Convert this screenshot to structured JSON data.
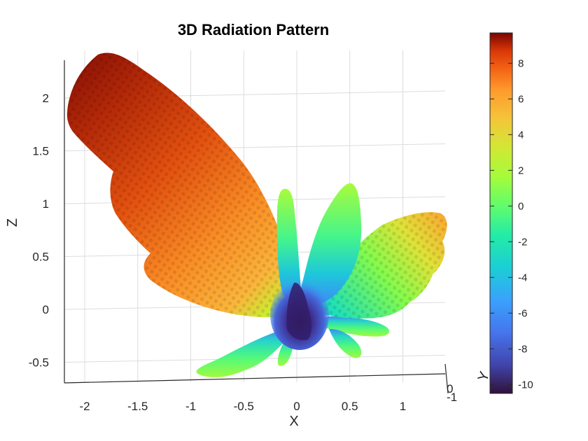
{
  "chart_data": {
    "type": "scatter3d",
    "title": "3D Radiation Pattern",
    "xlabel": "X",
    "ylabel": "Y",
    "zlabel": "Z",
    "x_ticks": [
      -2,
      -1.5,
      -1,
      -0.5,
      0,
      0.5,
      1
    ],
    "z_ticks": [
      -0.5,
      0,
      0.5,
      1,
      1.5,
      2
    ],
    "y_ticks_visible": [
      0,
      -1
    ],
    "xlim": [
      -2.2,
      1.4
    ],
    "zlim": [
      -0.68,
      2.4
    ],
    "grid": true,
    "colormap": "turbo",
    "colorbar": {
      "ticks": [
        8,
        6,
        4,
        2,
        0,
        -2,
        -4,
        -6,
        -8,
        -10
      ],
      "range": [
        -10.5,
        9.7
      ],
      "location": "right"
    },
    "colors": {
      "low": "#30123b",
      "mid_low": "#4686fb",
      "mid": "#1be5b5",
      "mid_high": "#a4fc3c",
      "high": "#fb8022",
      "max": "#7a0403"
    },
    "lobes": [
      {
        "name": "main lobe",
        "x": -2.1,
        "z": 2.2,
        "gain": 9.5
      },
      {
        "name": "right lobe",
        "x": 1.35,
        "z": 0.85,
        "gain": 4.0
      },
      {
        "name": "upper center lobe",
        "x": 0.5,
        "z": 1.2,
        "gain": -1.0
      },
      {
        "name": "upper left lobe",
        "x": -0.15,
        "z": 1.1,
        "gain": -2.0
      },
      {
        "name": "lower left lobe",
        "x": -0.5,
        "z": -0.62,
        "gain": 0.0
      },
      {
        "name": "lower right lobe",
        "x": 0.45,
        "z": -0.3,
        "gain": -1.0
      },
      {
        "name": "center null",
        "x": 0.0,
        "z": -0.2,
        "gain": -10.0
      }
    ]
  }
}
